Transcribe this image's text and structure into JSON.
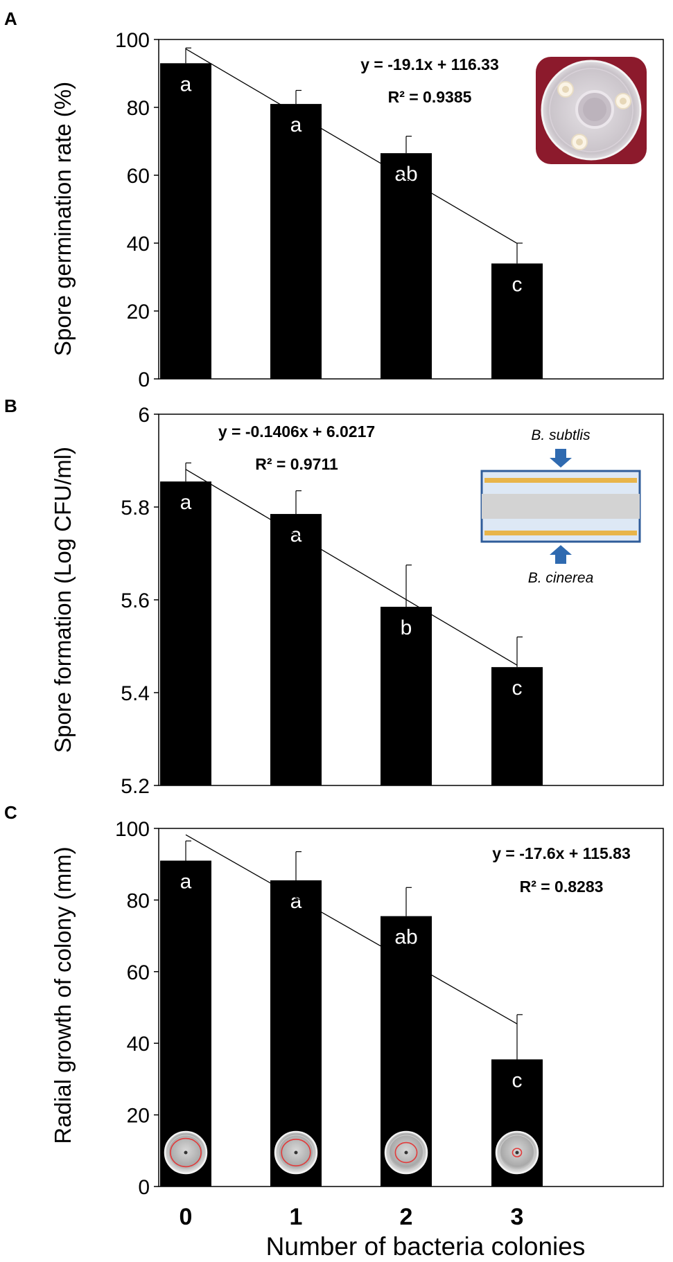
{
  "figure": {
    "xlabel": "Number of bacteria colonies",
    "x_categories": [
      "0",
      "1",
      "2",
      "3"
    ]
  },
  "chart_data": [
    {
      "panel": "A",
      "type": "bar",
      "categories": [
        "0",
        "1",
        "2",
        "3"
      ],
      "values": [
        93,
        81,
        66.5,
        34
      ],
      "errors": [
        4.5,
        4,
        5,
        6
      ],
      "letters": [
        "a",
        "a",
        "ab",
        "c"
      ],
      "ylabel": "Spore germination rate (%)",
      "ylim": [
        0,
        100
      ],
      "yticks": [
        0,
        20,
        40,
        60,
        80,
        100
      ],
      "ytick_labels": [
        "0",
        "20",
        "40",
        "60",
        "80",
        "100"
      ],
      "trendline": {
        "slope": -19.1,
        "intercept": 116.33
      },
      "equation": "y = -19.1x + 116.33",
      "r2": "R² = 0.9385",
      "inset": "petri-dish-photo",
      "bar_color": "#000000"
    },
    {
      "panel": "B",
      "type": "bar",
      "categories": [
        "0",
        "1",
        "2",
        "3"
      ],
      "values": [
        5.855,
        5.785,
        5.585,
        5.455
      ],
      "errors": [
        0.04,
        0.05,
        0.09,
        0.065
      ],
      "letters": [
        "a",
        "a",
        "b",
        "c"
      ],
      "ylabel": "Spore formation (Log CFU/ml)",
      "ylim": [
        5.2,
        6
      ],
      "yticks": [
        5.2,
        5.4,
        5.6,
        5.8,
        6
      ],
      "ytick_labels": [
        "5.2",
        "5.4",
        "5.6",
        "5.8",
        "6"
      ],
      "trendline": {
        "slope": -0.1406,
        "intercept": 6.0217
      },
      "equation": "y = -0.1406x + 6.0217",
      "r2": "R² = 0.9711",
      "inset": "sandwich-plate-diagram",
      "inset_top_label": "B. subtlis",
      "inset_bottom_label": "B. cinerea",
      "bar_color": "#000000"
    },
    {
      "panel": "C",
      "type": "bar",
      "categories": [
        "0",
        "1",
        "2",
        "3"
      ],
      "values": [
        91,
        85.5,
        75.5,
        35.5
      ],
      "errors": [
        5.5,
        8,
        8,
        12.5
      ],
      "letters": [
        "a",
        "a",
        "ab",
        "c"
      ],
      "ylabel": "Radial growth of colony (mm)",
      "ylim": [
        0,
        100
      ],
      "yticks": [
        0,
        20,
        40,
        60,
        80,
        100
      ],
      "ytick_labels": [
        "0",
        "20",
        "40",
        "60",
        "80",
        "100"
      ],
      "trendline": {
        "slope": -17.6,
        "intercept": 115.83
      },
      "equation": "y = -17.6x + 115.83",
      "r2": "R² = 0.8283",
      "inset": "petri-dish-thumbnails",
      "colony_ring_fraction": [
        0.85,
        0.8,
        0.6,
        0.25
      ],
      "bar_color": "#000000"
    }
  ]
}
